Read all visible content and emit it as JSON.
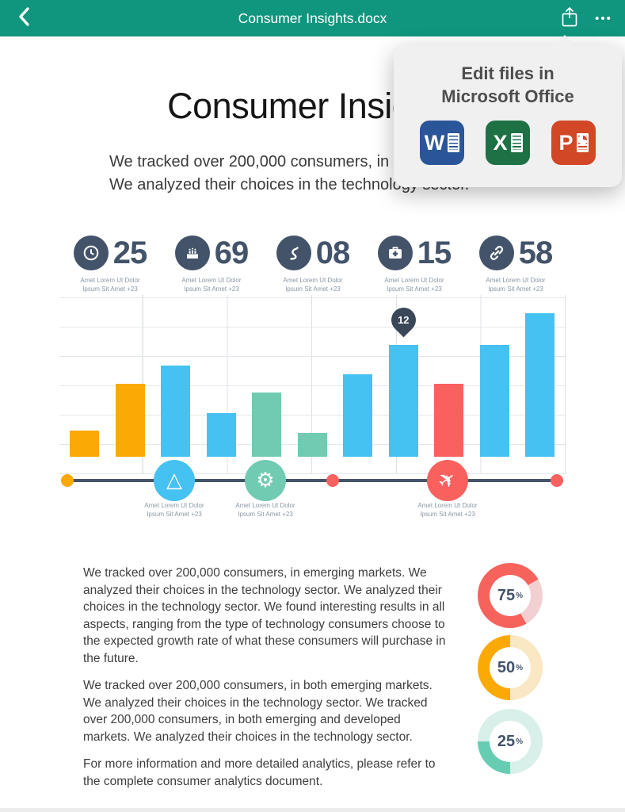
{
  "colors": {
    "header_teal": "#10957E",
    "navy": "#42536A",
    "bar_blue": "#45C2F2",
    "bar_orange": "#FBA905",
    "bar_green": "#70CBB2",
    "bar_red": "#F9615E"
  },
  "header": {
    "title": "Consumer Insights.docx",
    "back_icon": "chevron-left",
    "share_icon": "share-up-arrow",
    "more_icon": "ellipsis",
    "more_label": "•••"
  },
  "popover": {
    "title_line1": "Edit files in",
    "title_line2": "Microsoft Office",
    "apps": [
      {
        "name": "Microsoft Word",
        "letter": "W",
        "color": "#2A5699"
      },
      {
        "name": "Microsoft Excel",
        "letter": "X",
        "color": "#1E7145"
      },
      {
        "name": "Microsoft PowerPoint",
        "letter": "P",
        "color": "#D24726"
      }
    ]
  },
  "document": {
    "title": "Consumer Insights",
    "intro_line1": "We tracked over 200,000 consumers, in emerging markets.",
    "intro_line2": "We analyzed their choices in the technology sector.",
    "stats": [
      {
        "value": "25",
        "icon": "clock-icon",
        "caption_line1": "Amet Lorem Ut Dolor",
        "caption_line2": "Ipsum Sit Amet +23"
      },
      {
        "value": "69",
        "icon": "cake-icon",
        "caption_line1": "Amet Lorem Ut Dolor",
        "caption_line2": "Ipsum Sit Amet +23"
      },
      {
        "value": "08",
        "icon": "winding-road-icon",
        "caption_line1": "Amet Lorem Ut Dolor",
        "caption_line2": "Ipsum Sit Amet +23"
      },
      {
        "value": "15",
        "icon": "first-aid-icon",
        "caption_line1": "Amet Lorem Ut Dolor",
        "caption_line2": "Ipsum Sit Amet +23"
      },
      {
        "value": "58",
        "icon": "link-icon",
        "caption_line1": "Amet Lorem Ut Dolor",
        "caption_line2": "Ipsum Sit Amet +23"
      }
    ],
    "chart_data": {
      "type": "bar",
      "title": "",
      "xlabel": "",
      "ylabel": "",
      "categories": [
        "",
        "",
        "",
        "",
        "",
        "",
        "",
        "",
        "",
        "",
        ""
      ],
      "values": [
        0.9,
        2.5,
        3.1,
        1.5,
        2.2,
        0.8,
        2.8,
        3.8,
        2.5,
        3.8,
        4.9
      ],
      "ylim": [
        0,
        6
      ],
      "grid": true,
      "axis_tick_labels_visible": false,
      "bar_colors": [
        "orange",
        "orange",
        "blue",
        "blue",
        "green",
        "green",
        "blue",
        "blue",
        "red",
        "blue",
        "blue"
      ],
      "palette": {
        "blue": "#45C2F2",
        "orange": "#FBA905",
        "green": "#70CBB2",
        "red": "#F9615E"
      },
      "annotation": {
        "bar_index": 7,
        "label": "12",
        "shape": "map-pin",
        "color": "#3A4759"
      }
    },
    "timeline": {
      "palette": {
        "orange": "#FBA905",
        "red": "#F9615E",
        "blue": "#45C2F2",
        "green": "#70CBB2"
      },
      "nodes": [
        {
          "kind": "dot",
          "color": "orange",
          "x": 10
        },
        {
          "kind": "icon",
          "icon": "triangle-icon",
          "color": "blue",
          "x": 145,
          "caption_line1": "Amet Lorem Ut Dolor",
          "caption_line2": "Ipsum Sit Amet +23"
        },
        {
          "kind": "icon",
          "icon": "gear-icon",
          "color": "green",
          "x": 260,
          "caption_line1": "Amet Lorem Ut Dolor",
          "caption_line2": "Ipsum Sit Amet +23"
        },
        {
          "kind": "dot",
          "color": "red",
          "x": 345
        },
        {
          "kind": "icon",
          "icon": "plane-icon",
          "color": "red",
          "x": 490,
          "caption_line1": "Amet Lorem Ut Dolor",
          "caption_line2": "Ipsum Sit Amet +23"
        },
        {
          "kind": "dot",
          "color": "red",
          "x": 628
        }
      ]
    },
    "paragraphs": [
      "We tracked over 200,000 consumers, in emerging markets. We analyzed their choices in the technology sector. We analyzed their choices in the technology sector. We found interesting results in all aspects, ranging from the type of technology consumers choose to the expected growth rate of what these consumers will purchase in the future.",
      "We tracked over 200,000 consumers, in both emerging markets. We analyzed their choices in the technology sector. We tracked over 200,000 consumers, in both emerging and developed markets. We analyzed their choices in the technology sector.",
      "For more information and more detailed analytics, please refer to the complete consumer analytics document."
    ],
    "donut_charts": [
      {
        "type": "donut",
        "label": "75",
        "unit": "%",
        "percent": 75,
        "color": "#F5635C",
        "track": "#F2CFD0",
        "start_deg": 150
      },
      {
        "type": "donut",
        "label": "50",
        "unit": "%",
        "percent": 50,
        "color": "#FBA905",
        "track": "#FAE7C3",
        "start_deg": 180
      },
      {
        "type": "donut",
        "label": "25",
        "unit": "%",
        "percent": 25,
        "color": "#66CDB3",
        "track": "#D8F0E9",
        "start_deg": 180
      }
    ]
  }
}
